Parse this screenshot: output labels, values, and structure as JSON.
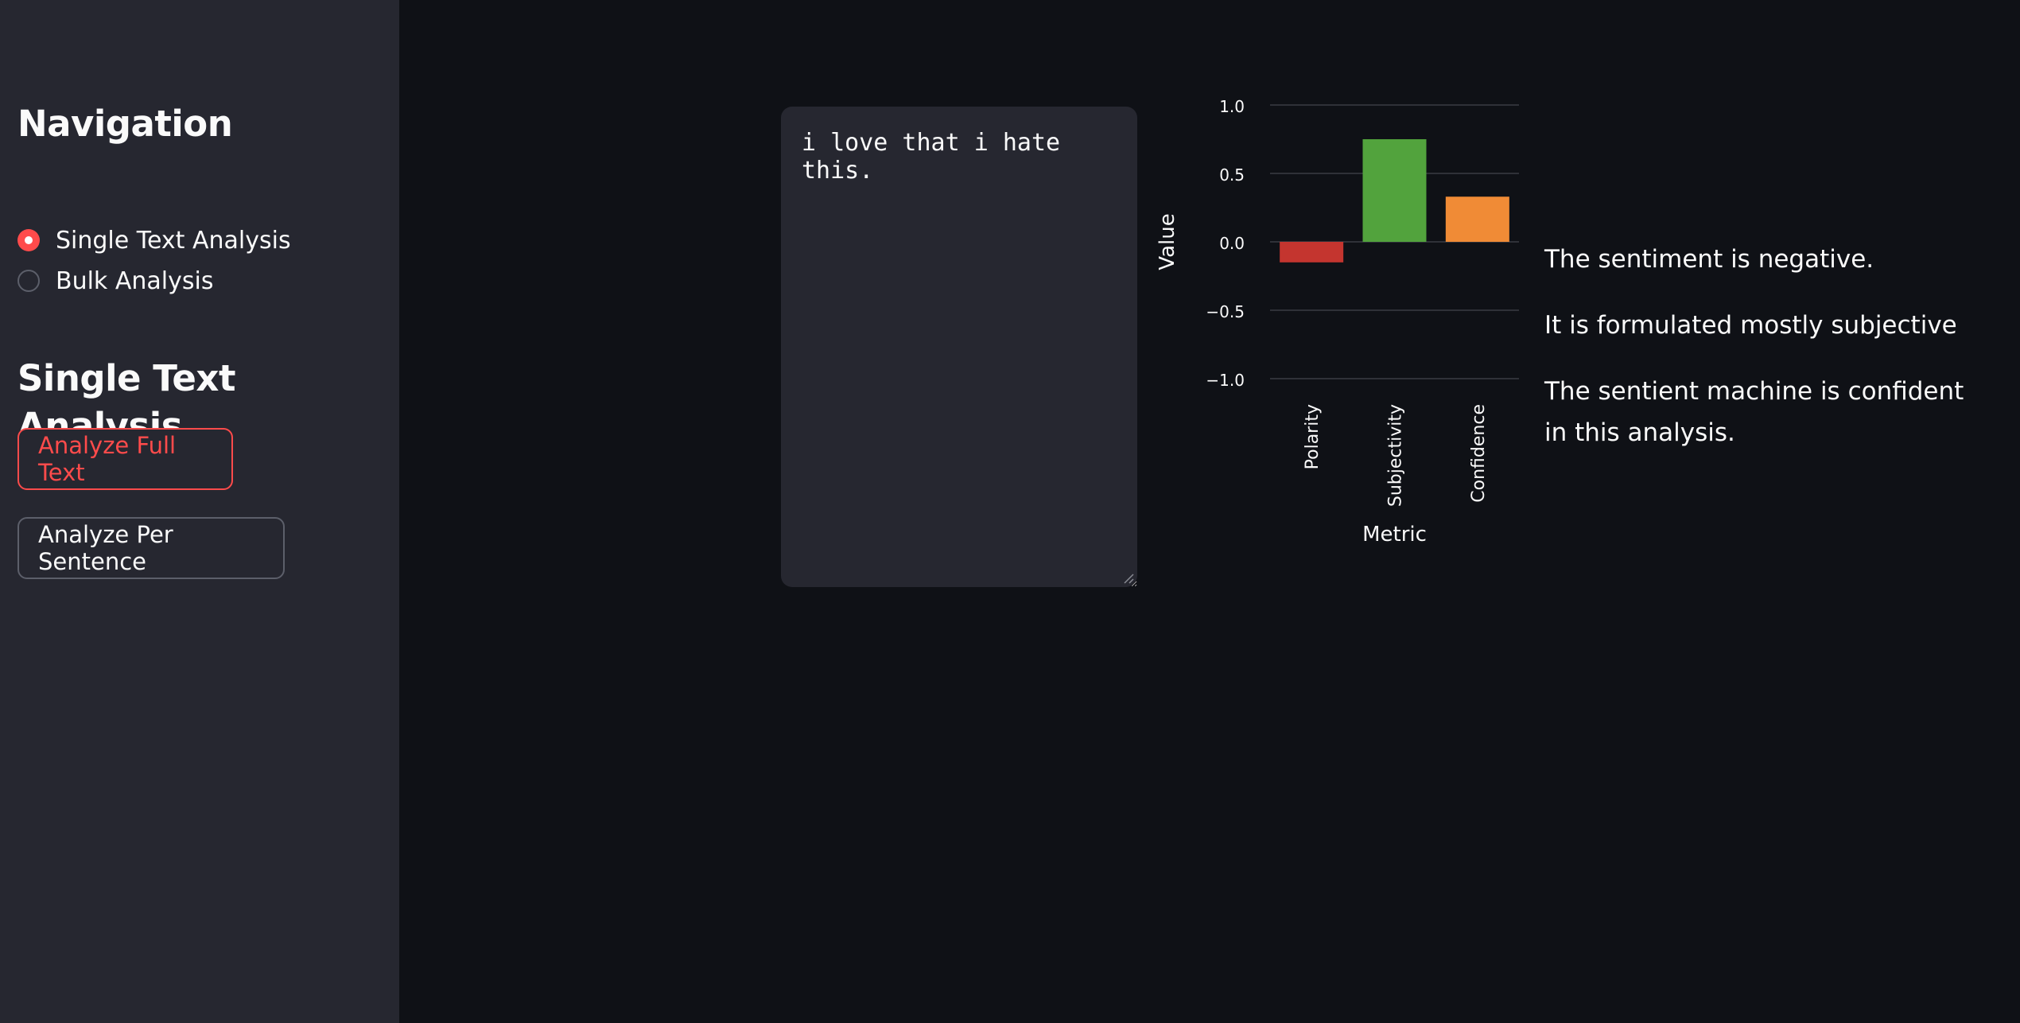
{
  "sidebar": {
    "nav_title": "Navigation",
    "radio_options": [
      {
        "label": "Single Text Analysis",
        "selected": true
      },
      {
        "label": "Bulk Analysis",
        "selected": false
      }
    ],
    "section_title": "Single Text Analysis",
    "buttons": {
      "analyze_full": "Analyze Full Text",
      "analyze_sentence": "Analyze Per Sentence"
    }
  },
  "main": {
    "input_text": "i love that i hate this.",
    "results": {
      "sentiment": "The sentiment is negative.",
      "subjectivity": "It is formulated mostly subjective",
      "confidence": "The sentient machine is confident in this analysis."
    }
  },
  "colors": {
    "accent": "#ff4b4b",
    "polarity": "#c4352f",
    "subjectivity": "#52a33d",
    "confidence": "#f08b36"
  },
  "chart_data": {
    "type": "bar",
    "categories": [
      "Polarity",
      "Subjectivity",
      "Confidence"
    ],
    "values": [
      -0.15,
      0.75,
      0.33
    ],
    "xlabel": "Metric",
    "ylabel": "Value",
    "ylim": [
      -1.0,
      1.0
    ],
    "yticks": [
      1.0,
      0.5,
      0.0,
      -0.5,
      -1.0
    ],
    "ytick_labels": [
      "1.0",
      "0.5",
      "0.0",
      "−0.5",
      "−1.0"
    ],
    "grid": true
  }
}
